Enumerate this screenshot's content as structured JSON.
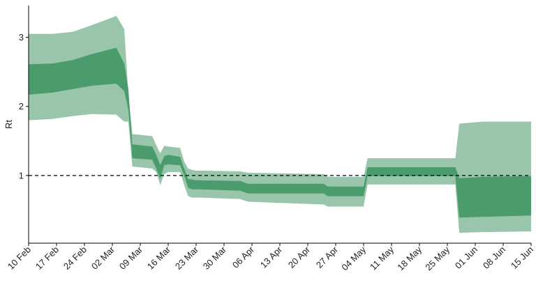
{
  "chart_data": {
    "type": "area",
    "title": "",
    "xlabel": "",
    "ylabel": "Rt",
    "x_ticks": [
      "10 Feb",
      "17 Feb",
      "24 Feb",
      "02 Mar",
      "09 Mar",
      "16 Mar",
      "23 Mar",
      "30 Mar",
      "06 Apr",
      "13 Apr",
      "20 Apr",
      "27 Apr",
      "04 May",
      "11 May",
      "18 May",
      "25 May",
      "01 Jun",
      "08 Jun",
      "15 Jun"
    ],
    "y_ticks": [
      "1",
      "2",
      "3"
    ],
    "x_range": [
      "2020-02-10",
      "2020-06-15"
    ],
    "ylim": [
      0.02,
      3.46
    ],
    "reference_line": {
      "y": 1,
      "style": "dashed",
      "color": "#000000"
    },
    "grid": false,
    "colors": {
      "outer_band": "#99c5aa",
      "inner_band": "#4a9c6c"
    },
    "series": [
      {
        "band": "outer",
        "x": [
          "2020-02-10",
          "2020-02-16",
          "2020-02-21",
          "2020-02-26",
          "2020-03-03",
          "2020-03-05",
          "2020-03-06",
          "2020-03-07",
          "2020-03-12",
          "2020-03-13",
          "2020-03-14",
          "2020-03-15",
          "2020-03-16",
          "2020-03-19",
          "2020-03-20",
          "2020-03-21",
          "2020-03-22",
          "2020-03-23",
          "2020-03-24",
          "2020-04-03",
          "2020-04-05",
          "2020-04-24",
          "2020-04-25",
          "2020-05-04",
          "2020-05-05",
          "2020-05-27",
          "2020-05-28",
          "2020-06-03",
          "2020-06-15"
        ],
        "lower": [
          1.8,
          1.82,
          1.86,
          1.89,
          1.88,
          1.78,
          1.78,
          1.13,
          1.1,
          1.05,
          0.86,
          1.02,
          1.05,
          1.05,
          0.86,
          0.7,
          0.68,
          0.68,
          0.68,
          0.66,
          0.62,
          0.58,
          0.55,
          0.55,
          0.87,
          0.87,
          0.17,
          0.18,
          0.19
        ],
        "upper": [
          3.05,
          3.05,
          3.08,
          3.18,
          3.31,
          3.12,
          2.18,
          1.6,
          1.57,
          1.44,
          1.32,
          1.43,
          1.42,
          1.4,
          1.2,
          1.1,
          1.08,
          1.07,
          1.07,
          1.06,
          1.04,
          1.02,
          0.98,
          0.98,
          1.25,
          1.25,
          1.75,
          1.78,
          1.78
        ]
      },
      {
        "band": "inner",
        "x": [
          "2020-02-10",
          "2020-02-16",
          "2020-02-21",
          "2020-02-26",
          "2020-03-03",
          "2020-03-05",
          "2020-03-06",
          "2020-03-07",
          "2020-03-12",
          "2020-03-13",
          "2020-03-14",
          "2020-03-15",
          "2020-03-16",
          "2020-03-19",
          "2020-03-20",
          "2020-03-21",
          "2020-03-22",
          "2020-03-23",
          "2020-03-24",
          "2020-04-03",
          "2020-04-05",
          "2020-04-24",
          "2020-04-25",
          "2020-05-04",
          "2020-05-05",
          "2020-05-27",
          "2020-05-28",
          "2020-06-03",
          "2020-06-15"
        ],
        "lower": [
          2.17,
          2.2,
          2.25,
          2.3,
          2.33,
          2.22,
          1.95,
          1.25,
          1.23,
          1.1,
          0.95,
          1.15,
          1.16,
          1.15,
          1.0,
          0.82,
          0.8,
          0.8,
          0.8,
          0.78,
          0.74,
          0.74,
          0.7,
          0.7,
          0.99,
          0.99,
          0.39,
          0.4,
          0.42
        ],
        "upper": [
          2.61,
          2.62,
          2.67,
          2.76,
          2.85,
          2.62,
          2.25,
          1.45,
          1.42,
          1.3,
          1.15,
          1.28,
          1.3,
          1.27,
          1.1,
          0.95,
          0.94,
          0.93,
          0.93,
          0.92,
          0.88,
          0.88,
          0.84,
          0.84,
          1.12,
          1.12,
          0.96,
          0.98,
          0.99
        ]
      }
    ]
  }
}
